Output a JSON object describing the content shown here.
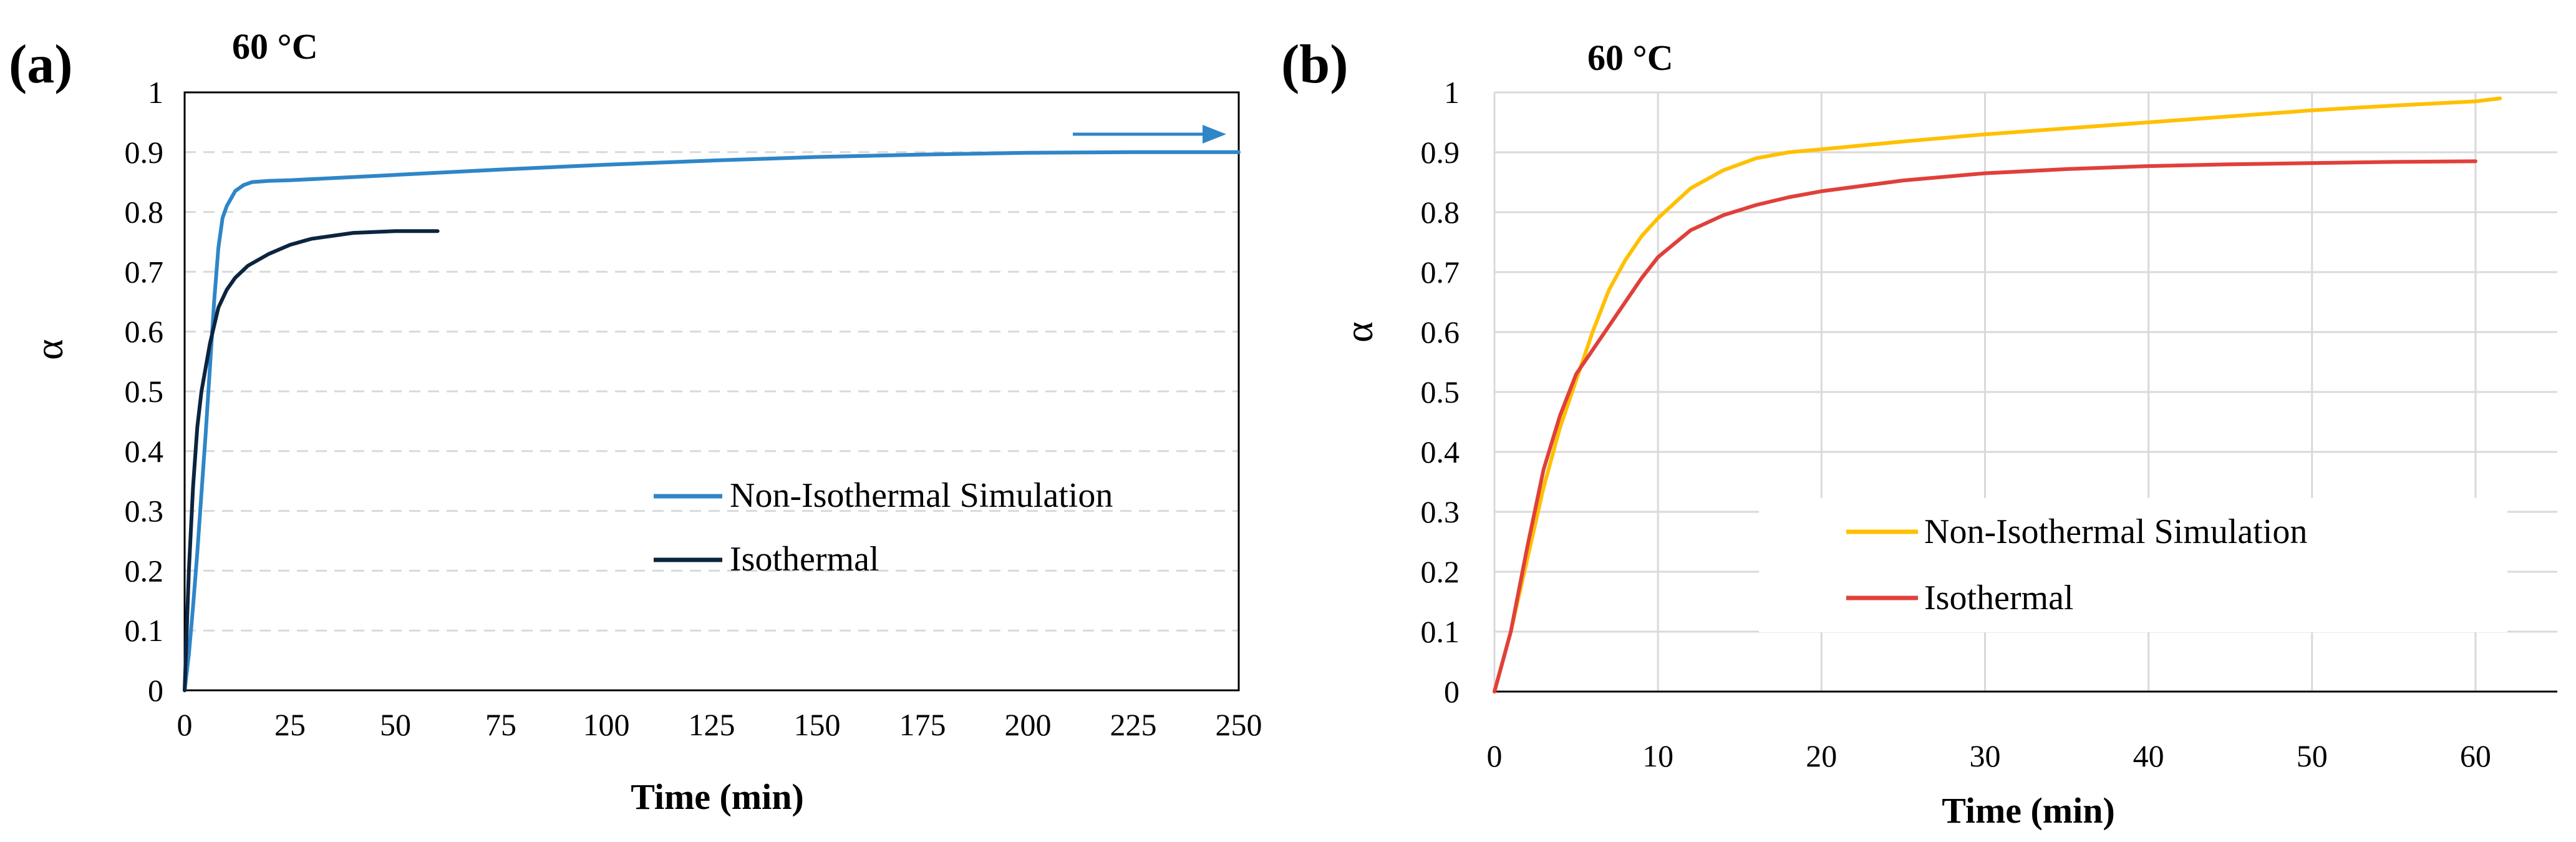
{
  "colors": {
    "a_noniso": "#2E86C8",
    "a_iso": "#0B2440",
    "b_noniso": "#FFC000",
    "b_iso": "#E0403A",
    "grid": "#D9D9D9",
    "axis": "#000000"
  },
  "chart_data": [
    {
      "type": "line",
      "panel_label": "(a)",
      "title": "60 °C",
      "xlabel": "Time (min)",
      "ylabel": "α",
      "xlim": [
        0,
        250
      ],
      "ylim": [
        0,
        1
      ],
      "x_ticks": [
        0,
        25,
        50,
        75,
        100,
        125,
        150,
        175,
        200,
        225,
        250
      ],
      "y_ticks": [
        0,
        0.1,
        0.2,
        0.3,
        0.4,
        0.5,
        0.6,
        0.7,
        0.8,
        0.9,
        1
      ],
      "y_tick_labels": [
        "0",
        "0.1",
        "0.2",
        "0.3",
        "0.4",
        "0.5",
        "0.6",
        "0.7",
        "0.8",
        "0.9",
        "1"
      ],
      "grid": "dashed horizontal",
      "legend_position": "center-right",
      "annotation": "arrow pointing right near top-right (series continues)",
      "series": [
        {
          "name": "Non-Isothermal Simulation",
          "x": [
            0,
            1,
            2,
            3,
            4,
            5,
            6,
            7,
            8,
            9,
            10,
            12,
            14,
            16,
            20,
            25,
            50,
            75,
            100,
            125,
            150,
            175,
            200,
            225,
            250
          ],
          "y": [
            0,
            0.06,
            0.14,
            0.23,
            0.33,
            0.43,
            0.54,
            0.65,
            0.74,
            0.79,
            0.81,
            0.835,
            0.845,
            0.85,
            0.852,
            0.853,
            0.862,
            0.871,
            0.879,
            0.886,
            0.892,
            0.896,
            0.899,
            0.9,
            0.9
          ]
        },
        {
          "name": "Isothermal",
          "x": [
            0,
            1,
            2,
            3,
            4,
            5,
            6,
            8,
            10,
            12,
            15,
            20,
            25,
            30,
            40,
            50,
            60
          ],
          "y": [
            0,
            0.2,
            0.34,
            0.44,
            0.5,
            0.54,
            0.58,
            0.64,
            0.67,
            0.69,
            0.71,
            0.73,
            0.745,
            0.755,
            0.765,
            0.768,
            0.768
          ]
        }
      ]
    },
    {
      "type": "line",
      "panel_label": "(b)",
      "title": "60 °C",
      "xlabel": "Time (min)",
      "ylabel": "α",
      "xlim": [
        0,
        65
      ],
      "ylim": [
        0,
        1
      ],
      "x_ticks": [
        0,
        10,
        20,
        30,
        40,
        50,
        60
      ],
      "y_ticks": [
        0,
        0.1,
        0.2,
        0.3,
        0.4,
        0.5,
        0.6,
        0.7,
        0.8,
        0.9,
        1
      ],
      "y_tick_labels": [
        "0",
        "0.1",
        "0.2",
        "0.3",
        "0.4",
        "0.5",
        "0.6",
        "0.7",
        "0.8",
        "0.9",
        "1"
      ],
      "grid": "solid horizontal and vertical",
      "legend_position": "center-right",
      "series": [
        {
          "name": "Non-Isothermal Simulation",
          "x": [
            0,
            1,
            2,
            3,
            4,
            5,
            6,
            7,
            8,
            9,
            10,
            12,
            14,
            16,
            18,
            20,
            25,
            30,
            35,
            40,
            45,
            50,
            55,
            60,
            61.5
          ],
          "y": [
            0,
            0.1,
            0.22,
            0.34,
            0.44,
            0.52,
            0.6,
            0.67,
            0.72,
            0.76,
            0.79,
            0.84,
            0.87,
            0.89,
            0.9,
            0.905,
            0.918,
            0.93,
            0.94,
            0.95,
            0.96,
            0.97,
            0.978,
            0.985,
            0.99
          ]
        },
        {
          "name": "Isothermal",
          "x": [
            0,
            1,
            2,
            3,
            4,
            5,
            6,
            7,
            8,
            9,
            10,
            12,
            14,
            16,
            18,
            20,
            25,
            30,
            35,
            40,
            45,
            50,
            55,
            60
          ],
          "y": [
            0,
            0.1,
            0.24,
            0.37,
            0.46,
            0.53,
            0.57,
            0.61,
            0.65,
            0.69,
            0.725,
            0.77,
            0.795,
            0.812,
            0.825,
            0.835,
            0.853,
            0.865,
            0.872,
            0.877,
            0.88,
            0.882,
            0.884,
            0.885
          ]
        }
      ]
    }
  ]
}
